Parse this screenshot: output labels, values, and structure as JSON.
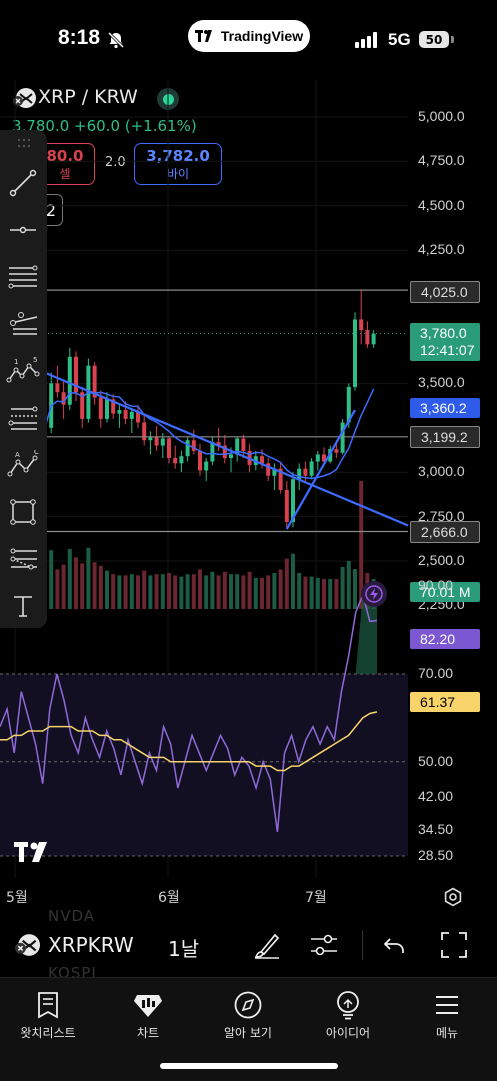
{
  "status_bar": {
    "time": "8:18",
    "network": "5G",
    "battery": "50",
    "pill_label": "TradingView"
  },
  "header": {
    "symbol": "XRP / KRW",
    "price_line": "3,780.0 +60.0 (+1.61%)",
    "sell": {
      "price": "80.0",
      "label": "셀"
    },
    "spread": "2.0",
    "buy": {
      "price": "3,782.0",
      "label": "바이"
    },
    "interval_partial": "2"
  },
  "price_axis": [
    "5,000.0",
    "4,750.0",
    "4,500.0",
    "4,250.0",
    "3,500.0",
    "3,000.0",
    "2,750.0",
    "2,500.0",
    "2,250.0"
  ],
  "price_tags": {
    "line_4025": "4,025.0",
    "last_price": "3,780.0",
    "countdown": "12:41:07",
    "ma_value": "3,360.2",
    "line_3199": "3,199.2",
    "line_2666": "2,666.0",
    "volume": "70.01 M"
  },
  "rsi_axis": [
    "90.00",
    "70.00",
    "50.00",
    "42.00",
    "34.50",
    "28.50"
  ],
  "rsi_tags": {
    "rsi": "82.20",
    "rsi_ma": "61.37"
  },
  "time_axis": [
    "5월",
    "6월",
    "7월"
  ],
  "symbol_bar": {
    "symbol": "XRPKRW",
    "interval": "1날",
    "ghost1": "NVDA",
    "ghost2": "KOSPI"
  },
  "nav": [
    {
      "label": "왓치리스트",
      "icon": "watchlist-icon"
    },
    {
      "label": "차트",
      "icon": "chart-icon"
    },
    {
      "label": "알아 보기",
      "icon": "explore-icon"
    },
    {
      "label": "아이디어",
      "icon": "ideas-icon"
    },
    {
      "label": "메뉴",
      "icon": "menu-icon"
    }
  ],
  "colors": {
    "up": "#2ebd85",
    "down": "#d9434f",
    "trendline": "#3d6bff",
    "ma": "#3d6bff",
    "rsi": "#8e6ad8",
    "rsi_ma": "#f7d36a"
  },
  "chart_data": [
    {
      "type": "candlestick",
      "title": "XRP / KRW",
      "ylim": [
        2200,
        5100
      ],
      "x_ticks": [
        "5월",
        "6월",
        "7월"
      ],
      "candles": [
        [
          3400,
          3450,
          3180,
          3250
        ],
        [
          3250,
          3560,
          3220,
          3500
        ],
        [
          3500,
          3600,
          3420,
          3450
        ],
        [
          3450,
          3520,
          3300,
          3380
        ],
        [
          3380,
          3700,
          3350,
          3650
        ],
        [
          3650,
          3680,
          3400,
          3450
        ],
        [
          3450,
          3480,
          3250,
          3300
        ],
        [
          3300,
          3640,
          3280,
          3600
        ],
        [
          3600,
          3620,
          3380,
          3420
        ],
        [
          3420,
          3460,
          3250,
          3300
        ],
        [
          3300,
          3450,
          3280,
          3410
        ],
        [
          3410,
          3440,
          3300,
          3330
        ],
        [
          3330,
          3380,
          3250,
          3350
        ],
        [
          3350,
          3400,
          3270,
          3300
        ],
        [
          3300,
          3360,
          3220,
          3340
        ],
        [
          3340,
          3380,
          3250,
          3280
        ],
        [
          3280,
          3320,
          3150,
          3180
        ],
        [
          3180,
          3230,
          3100,
          3200
        ],
        [
          3200,
          3260,
          3120,
          3150
        ],
        [
          3150,
          3220,
          3080,
          3190
        ],
        [
          3190,
          3200,
          3050,
          3080
        ],
        [
          3080,
          3150,
          3020,
          3050
        ],
        [
          3050,
          3120,
          3000,
          3090
        ],
        [
          3090,
          3200,
          3060,
          3180
        ],
        [
          3180,
          3240,
          3100,
          3120
        ],
        [
          3120,
          3160,
          2980,
          3010
        ],
        [
          3010,
          3080,
          2950,
          3060
        ],
        [
          3060,
          3200,
          3040,
          3170
        ],
        [
          3170,
          3250,
          3120,
          3150
        ],
        [
          3150,
          3210,
          3050,
          3080
        ],
        [
          3080,
          3140,
          3000,
          3100
        ],
        [
          3100,
          3200,
          3060,
          3190
        ],
        [
          3190,
          3210,
          3080,
          3120
        ],
        [
          3120,
          3160,
          3000,
          3040
        ],
        [
          3040,
          3120,
          3010,
          3090
        ],
        [
          3090,
          3130,
          3020,
          3050
        ],
        [
          3050,
          3080,
          2950,
          2980
        ],
        [
          2980,
          3050,
          2900,
          3020
        ],
        [
          3020,
          3060,
          2880,
          2900
        ],
        [
          2900,
          2950,
          2680,
          2720
        ],
        [
          2720,
          3000,
          2690,
          2960
        ],
        [
          2960,
          3050,
          2900,
          3020
        ],
        [
          3020,
          3060,
          2940,
          2980
        ],
        [
          2980,
          3080,
          2960,
          3060
        ],
        [
          3060,
          3120,
          3010,
          3100
        ],
        [
          3100,
          3140,
          3040,
          3060
        ],
        [
          3060,
          3150,
          3050,
          3130
        ],
        [
          3130,
          3180,
          3080,
          3110
        ],
        [
          3110,
          3300,
          3100,
          3280
        ],
        [
          3280,
          3500,
          3250,
          3480
        ],
        [
          3480,
          3900,
          3460,
          3860
        ],
        [
          3860,
          4025,
          3720,
          3800
        ],
        [
          3800,
          3850,
          3700,
          3720
        ],
        [
          3720,
          3800,
          3700,
          3780
        ]
      ],
      "trendlines": [
        {
          "from": [
            "start",
            3560
          ],
          "to": [
            "end",
            2700
          ]
        },
        {
          "from": [
            39,
            2680
          ],
          "to": [
            51,
            3350
          ]
        }
      ],
      "hlines": [
        4025.0,
        3199.2,
        2666.0
      ]
    },
    {
      "type": "line",
      "title": "RSI",
      "ylim": [
        28.5,
        90
      ],
      "series": [
        {
          "name": "RSI",
          "values": [
            58,
            62,
            52,
            66,
            60,
            54,
            45,
            62,
            70,
            64,
            56,
            52,
            60,
            55,
            51,
            57,
            53,
            47,
            55,
            50,
            45,
            52,
            48,
            58,
            54,
            44,
            50,
            56,
            52,
            48,
            52,
            56,
            53,
            47,
            51,
            49,
            44,
            50,
            46,
            34,
            52,
            56,
            50,
            55,
            58,
            54,
            58,
            55,
            66,
            74,
            84,
            88,
            82,
            82.2
          ]
        },
        {
          "name": "RSI MA",
          "values": [
            55,
            55,
            56,
            56,
            57,
            57,
            57,
            58,
            58,
            58,
            58,
            57,
            57,
            57,
            56,
            56,
            55,
            55,
            54,
            53,
            52,
            51,
            51,
            51,
            50,
            50,
            50,
            50,
            50,
            50,
            50,
            50,
            50,
            50,
            50,
            50,
            49,
            49,
            49,
            48,
            48,
            49,
            49,
            50,
            51,
            52,
            53,
            54,
            55,
            56,
            58,
            60,
            61,
            61.37
          ]
        }
      ],
      "levels": [
        70,
        50,
        30
      ]
    }
  ]
}
